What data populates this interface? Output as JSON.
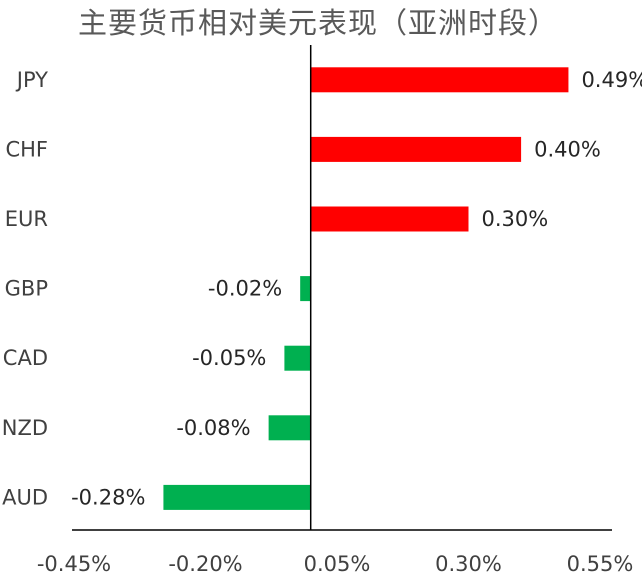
{
  "chart_data": {
    "type": "bar",
    "orientation": "horizontal",
    "title": "主要货币相对美元表现（亚洲时段）",
    "categories": [
      "JPY",
      "CHF",
      "EUR",
      "GBP",
      "CAD",
      "NZD",
      "AUD"
    ],
    "values": [
      0.49,
      0.4,
      0.3,
      -0.02,
      -0.05,
      -0.08,
      -0.28
    ],
    "data_labels": [
      "0.49%",
      "0.40%",
      "0.30%",
      "-0.02%",
      "-0.05%",
      "-0.08%",
      "-0.28%"
    ],
    "x_ticks": [
      -0.45,
      -0.2,
      0.05,
      0.3,
      0.55
    ],
    "x_tick_labels": [
      "-0.45%",
      "-0.20%",
      "0.05%",
      "0.30%",
      "0.55%"
    ],
    "xlim": [
      -0.45,
      0.55
    ],
    "xlabel": "",
    "ylabel": "",
    "grid": false,
    "colors": {
      "positive": "#FF0000",
      "negative": "#00B050",
      "axis": "#000000"
    }
  }
}
